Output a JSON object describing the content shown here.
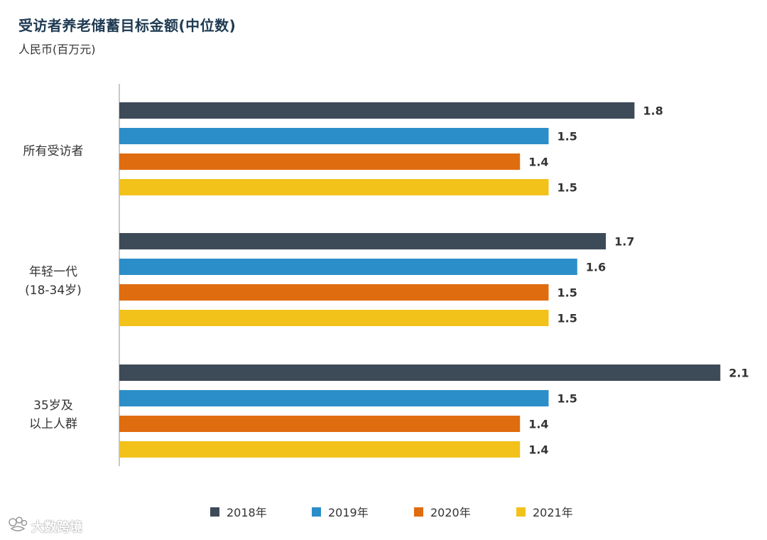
{
  "chart_data": {
    "type": "bar",
    "orientation": "horizontal",
    "title": "受访者养老储蓄目标金额(中位数)",
    "subtitle": "人民币(百万元)",
    "categories": [
      "所有受访者",
      "年轻一代\n(18-34岁)",
      "35岁及\n以上人群"
    ],
    "series": [
      {
        "name": "2018年",
        "color": "#3d4a58",
        "values": [
          1.8,
          1.7,
          2.1
        ]
      },
      {
        "name": "2019年",
        "color": "#2b8ec8",
        "values": [
          1.5,
          1.6,
          1.5
        ]
      },
      {
        "name": "2020年",
        "color": "#e06c10",
        "values": [
          1.4,
          1.5,
          1.4
        ]
      },
      {
        "name": "2021年",
        "color": "#f2c21b",
        "values": [
          1.5,
          1.5,
          1.4
        ]
      }
    ],
    "xlim": [
      0,
      2.3
    ],
    "grid": false,
    "legend_position": "bottom"
  },
  "watermark": {
    "text": "大数跨境",
    "icon": "paw-logo-icon"
  }
}
